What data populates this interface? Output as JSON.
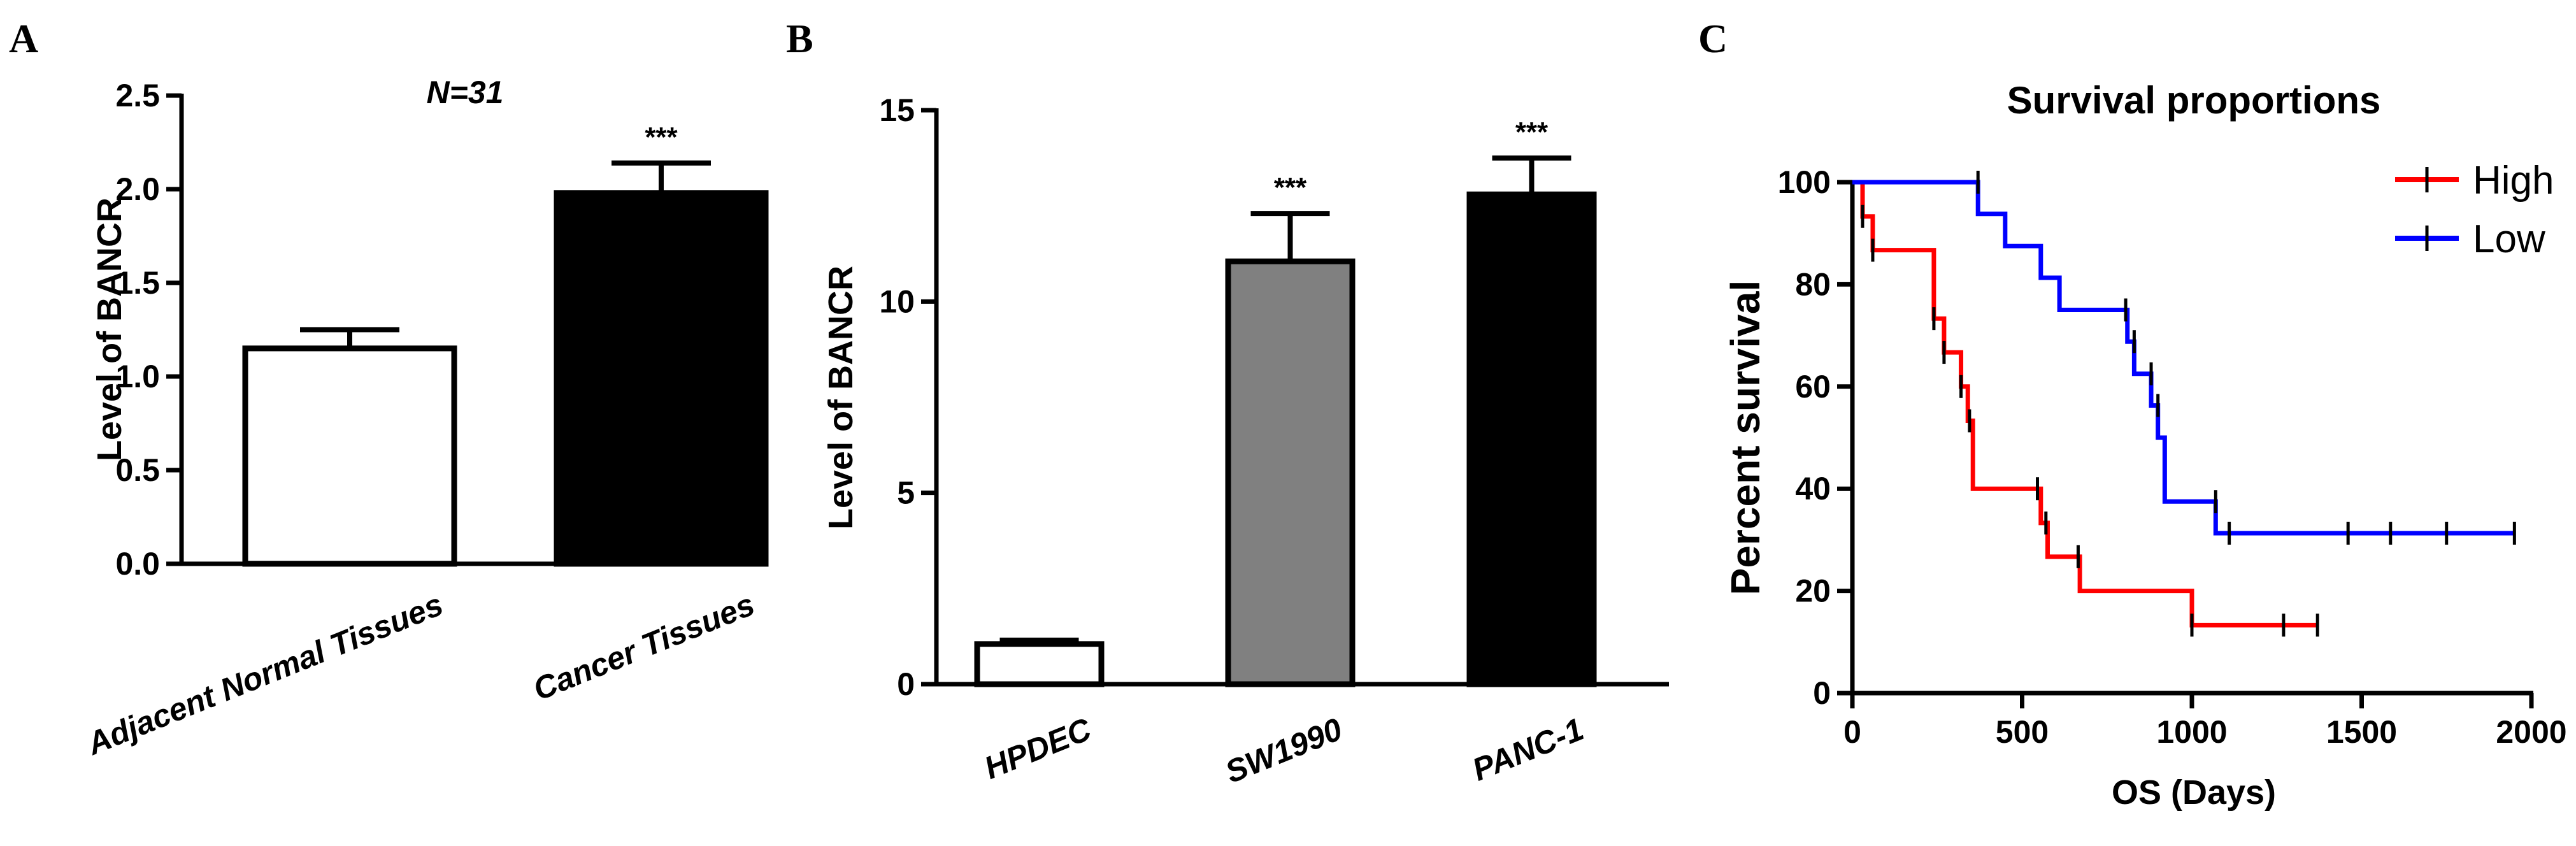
{
  "chart_data": [
    {
      "panel": "A",
      "type": "bar",
      "categories": [
        "Adjacent Normal Tissues",
        "Cancer Tissues"
      ],
      "values": [
        1.15,
        1.98
      ],
      "errors": [
        0.1,
        0.16
      ],
      "significance": [
        "",
        "***"
      ],
      "bar_colors": [
        "#ffffff",
        "#000000"
      ],
      "ylabel": "Level of BANCR",
      "annotation": "N=31",
      "ylim": [
        0,
        2.5
      ],
      "yticks": [
        0.0,
        0.5,
        1.0,
        1.5,
        2.0,
        2.5
      ],
      "ytick_labels": [
        "0.0",
        "0.5",
        "1.0",
        "1.5",
        "2.0",
        "2.5"
      ]
    },
    {
      "panel": "B",
      "type": "bar",
      "categories": [
        "HPDEC",
        "SW1990",
        "PANC-1"
      ],
      "values": [
        1.05,
        11.05,
        12.8
      ],
      "errors": [
        0.1,
        1.25,
        0.95
      ],
      "significance": [
        "",
        "***",
        "***"
      ],
      "bar_colors": [
        "#ffffff",
        "#808080",
        "#000000"
      ],
      "ylabel": "Level of BANCR",
      "ylim": [
        0,
        15
      ],
      "yticks": [
        0,
        5,
        10,
        15
      ],
      "ytick_labels": [
        "0",
        "5",
        "10",
        "15"
      ]
    },
    {
      "panel": "C",
      "type": "line",
      "title": "Survival proportions",
      "xlabel": "OS (Days)",
      "ylabel": "Percent survival",
      "xlim": [
        0,
        2000
      ],
      "ylim": [
        0,
        100
      ],
      "xticks": [
        0,
        500,
        1000,
        1500,
        2000
      ],
      "xtick_labels": [
        "0",
        "500",
        "1000",
        "1500",
        "2000"
      ],
      "yticks": [
        0,
        20,
        40,
        60,
        80,
        100
      ],
      "ytick_labels": [
        "0",
        "20",
        "40",
        "60",
        "80",
        "100"
      ],
      "legend_position": "top-right",
      "series": [
        {
          "name": "High",
          "color": "#ff0000",
          "steps": [
            [
              0,
              100
            ],
            [
              30,
              93.3
            ],
            [
              60,
              86.7
            ],
            [
              240,
              73.3
            ],
            [
              270,
              66.7
            ],
            [
              320,
              60
            ],
            [
              340,
              53.3
            ],
            [
              355,
              40
            ],
            [
              555,
              33.3
            ],
            [
              575,
              26.7
            ],
            [
              670,
              20
            ],
            [
              1000,
              13.3
            ],
            [
              1370,
              13.3
            ]
          ],
          "censored": [
            [
              30,
              93.3
            ],
            [
              60,
              86.7
            ],
            [
              240,
              73.3
            ],
            [
              270,
              66.7
            ],
            [
              320,
              60
            ],
            [
              345,
              53.3
            ],
            [
              545,
              40
            ],
            [
              570,
              33.3
            ],
            [
              665,
              26.7
            ],
            [
              1000,
              13.3
            ],
            [
              1270,
              13.3
            ],
            [
              1370,
              13.3
            ]
          ]
        },
        {
          "name": "Low",
          "color": "#0000ff",
          "steps": [
            [
              0,
              100
            ],
            [
              370,
              93.8
            ],
            [
              450,
              87.5
            ],
            [
              555,
              81.3
            ],
            [
              610,
              75
            ],
            [
              810,
              68.8
            ],
            [
              830,
              62.5
            ],
            [
              880,
              56.3
            ],
            [
              900,
              50
            ],
            [
              920,
              37.5
            ],
            [
              1070,
              31.3
            ],
            [
              1950,
              31.3
            ]
          ],
          "censored": [
            [
              370,
              100
            ],
            [
              805,
              75
            ],
            [
              830,
              68.8
            ],
            [
              880,
              62.5
            ],
            [
              900,
              56.3
            ],
            [
              1070,
              37.5
            ],
            [
              1110,
              31.3
            ],
            [
              1460,
              31.3
            ],
            [
              1585,
              31.3
            ],
            [
              1750,
              31.3
            ],
            [
              1950,
              31.3
            ]
          ]
        }
      ]
    }
  ]
}
